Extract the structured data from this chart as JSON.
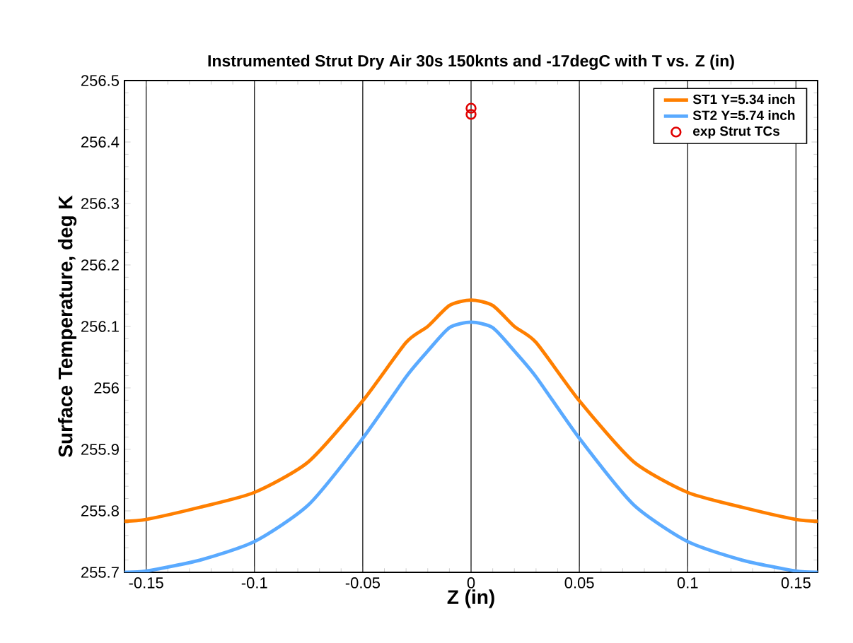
{
  "chart_data": {
    "type": "line",
    "title": "Instrumented Strut Dry Air 30s 150knts and -17degC with T vs. Z (in)",
    "xlabel": "Z (in)",
    "ylabel": "Surface Temperature, deg K",
    "xlim": [
      -0.16,
      0.16
    ],
    "ylim": [
      255.7,
      256.5
    ],
    "xticks": [
      -0.15,
      -0.1,
      -0.05,
      0,
      0.05,
      0.1,
      0.15
    ],
    "yticks": [
      255.7,
      255.8,
      255.9,
      256,
      256.1,
      256.2,
      256.3,
      256.4,
      256.5
    ],
    "grid": "x",
    "legend": "top right",
    "series": [
      {
        "name": "ST1 Y=5.34 inch",
        "color": "#ff7f00",
        "marker": "none",
        "x": [
          -0.16,
          -0.15,
          -0.125,
          -0.1,
          -0.075,
          -0.05,
          -0.03,
          -0.02,
          -0.01,
          0,
          0.01,
          0.02,
          0.03,
          0.05,
          0.075,
          0.1,
          0.125,
          0.15,
          0.16
        ],
        "values": [
          255.783,
          255.786,
          255.806,
          255.83,
          255.88,
          255.979,
          256.074,
          256.1,
          256.134,
          256.143,
          256.134,
          256.1,
          256.074,
          255.979,
          255.88,
          255.83,
          255.806,
          255.786,
          255.783
        ]
      },
      {
        "name": "ST2 Y=5.74 inch",
        "color": "#5aaaff",
        "marker": "none",
        "x": [
          -0.16,
          -0.15,
          -0.125,
          -0.1,
          -0.075,
          -0.05,
          -0.03,
          -0.02,
          -0.01,
          0,
          0.01,
          0.02,
          0.03,
          0.05,
          0.075,
          0.1,
          0.125,
          0.15,
          0.16
        ],
        "values": [
          255.7,
          255.702,
          255.72,
          255.75,
          255.81,
          255.918,
          256.018,
          256.06,
          256.098,
          256.107,
          256.098,
          256.06,
          256.018,
          255.918,
          255.81,
          255.75,
          255.72,
          255.702,
          255.7
        ]
      },
      {
        "name": "exp Strut TCs",
        "color": "#e00000",
        "type": "scatter",
        "marker": "circle",
        "x": [
          0,
          0
        ],
        "values": [
          256.455,
          256.445
        ]
      }
    ]
  }
}
